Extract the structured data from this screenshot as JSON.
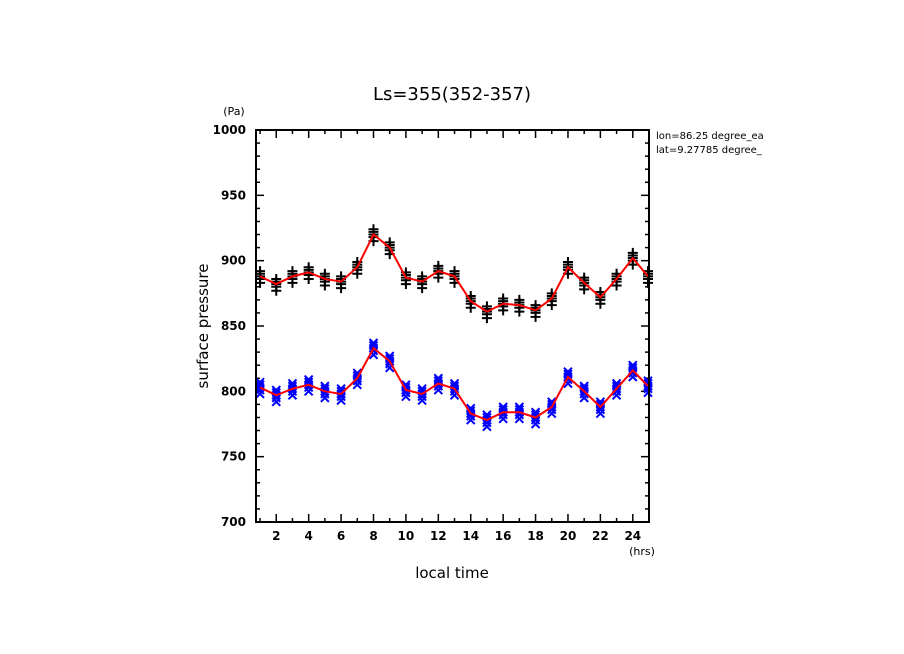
{
  "chart_data": {
    "type": "line",
    "title": "Ls=355(352-357)",
    "xlabel": "local time",
    "ylabel": "surface pressure",
    "x_unit": "(hrs)",
    "y_unit": "(Pa)",
    "xlim": [
      0.75,
      25
    ],
    "ylim": [
      700,
      1000
    ],
    "x_major_ticks": [
      2,
      4,
      6,
      8,
      10,
      12,
      14,
      16,
      18,
      20,
      22,
      24
    ],
    "x_tick_labels": [
      "2",
      "4",
      "6",
      "8",
      "10",
      "12",
      "14",
      "16",
      "18",
      "20",
      "22",
      "24"
    ],
    "y_major_ticks": [
      700,
      750,
      800,
      850,
      900,
      950,
      1000
    ],
    "y_tick_labels": [
      "700",
      "750",
      "800",
      "850",
      "900",
      "950",
      "1000"
    ],
    "y_minor_step": 10,
    "x_minor_step": 1,
    "grid": false,
    "annotations": [
      "lon=86.25 degree_ea",
      "lat=9.27785 degree_"
    ],
    "x": [
      1,
      2,
      3,
      4,
      5,
      6,
      7,
      8,
      9,
      10,
      11,
      12,
      13,
      14,
      15,
      16,
      17,
      18,
      19,
      20,
      21,
      22,
      23,
      24,
      25
    ],
    "series": [
      {
        "name": "black plus scatter (upper)",
        "marker": "+",
        "color": "#000000",
        "line_color": "#ff0000",
        "values": [
          888,
          882,
          888,
          891,
          886,
          884,
          895,
          920,
          910,
          887,
          884,
          892,
          888,
          869,
          861,
          867,
          866,
          862,
          871,
          895,
          883,
          872,
          886,
          902,
          888
        ]
      },
      {
        "name": "blue x scatter (lower)",
        "marker": "x",
        "color": "#0000ff",
        "line_color": "#ff0000",
        "values": [
          803,
          797,
          802,
          805,
          800,
          798,
          810,
          833,
          823,
          801,
          798,
          806,
          802,
          783,
          778,
          784,
          784,
          780,
          788,
          811,
          800,
          788,
          802,
          816,
          804
        ]
      }
    ]
  }
}
